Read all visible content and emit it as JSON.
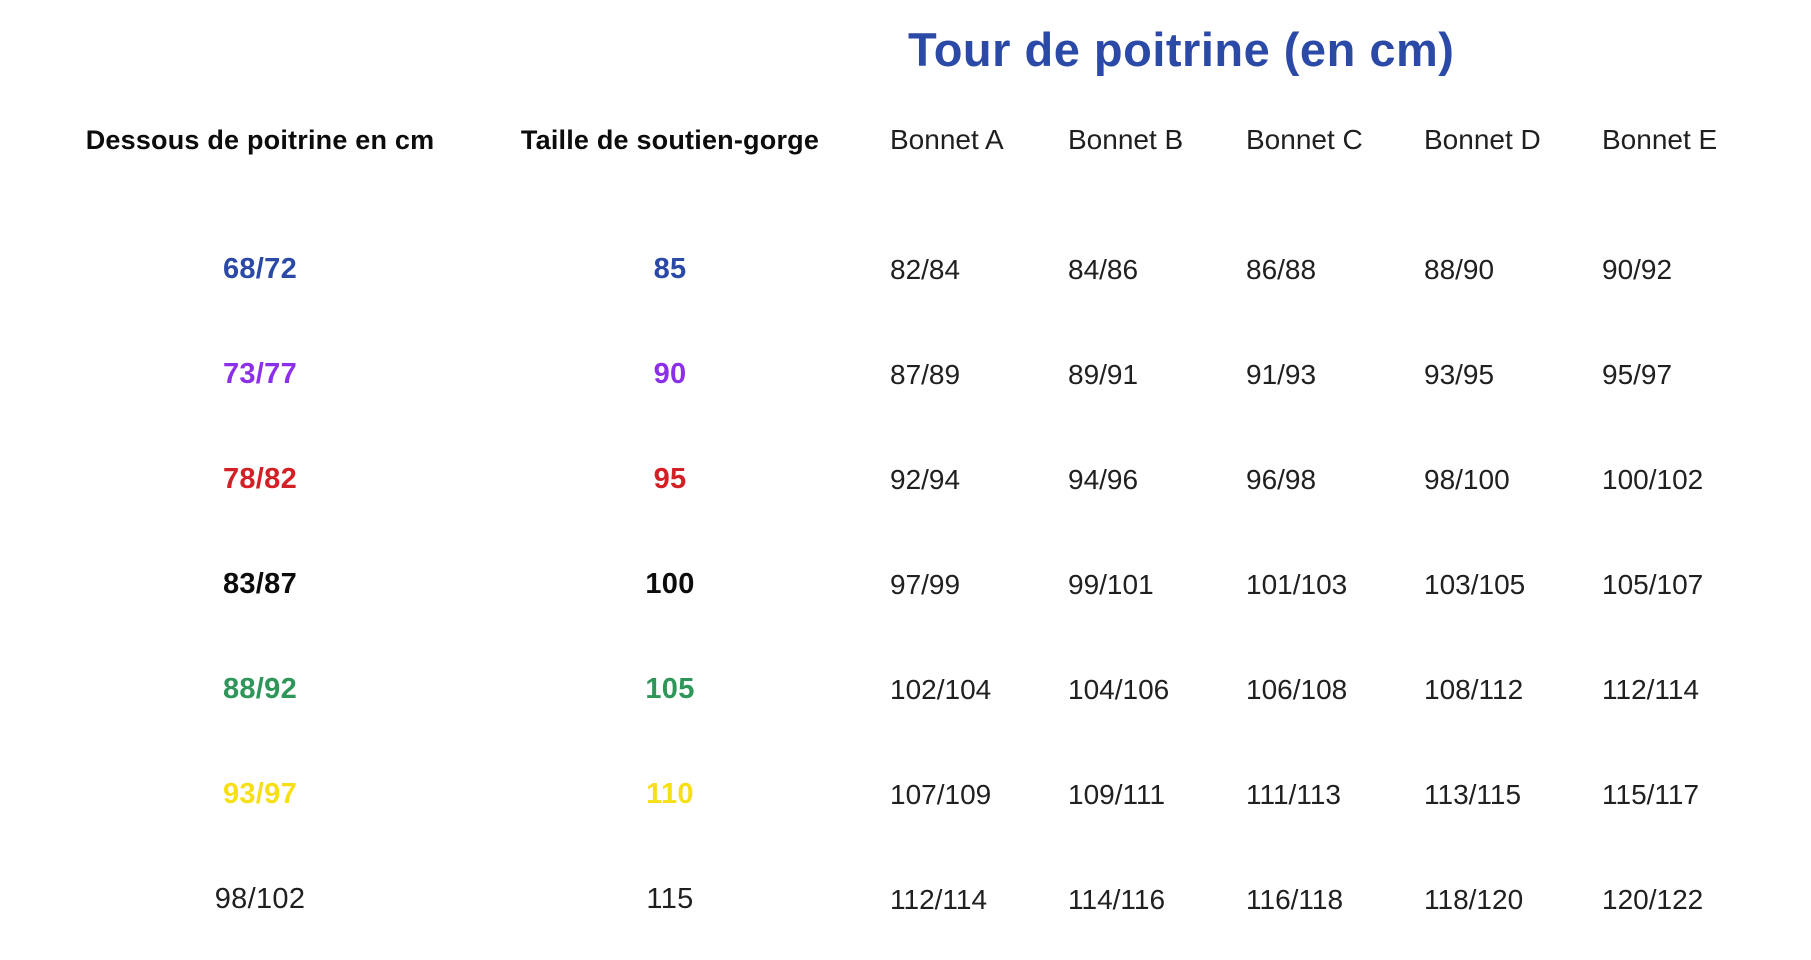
{
  "title": "Tour de poitrine (en cm)",
  "colors": {
    "title_blue": "#2b49a7",
    "row_blue": "#2b49a7",
    "row_purple": "#8b2fe8",
    "row_red": "#d31f26",
    "row_black": "#0c0c0c",
    "row_green": "#2d9658",
    "row_yellow": "#f7df17",
    "row_plain": "#1f1f1f",
    "cup_text": "#202020"
  },
  "table": {
    "headers": [
      {
        "label": "Dessous de poitrine en cm"
      },
      {
        "label": "Taille de soutien-gorge"
      },
      {
        "label": "Bonnet A"
      },
      {
        "label": "Bonnet B"
      },
      {
        "label": "Bonnet C"
      },
      {
        "label": "Bonnet D"
      },
      {
        "label": "Bonnet E"
      }
    ],
    "rows": [
      {
        "underbust": "68/72",
        "band": "85",
        "color": "#2b49a7",
        "bold": true,
        "cups": [
          "82/84",
          "84/86",
          "86/88",
          "88/90",
          "90/92"
        ]
      },
      {
        "underbust": "73/77",
        "band": "90",
        "color": "#8b2fe8",
        "bold": true,
        "cups": [
          "87/89",
          "89/91",
          "91/93",
          "93/95",
          "95/97"
        ]
      },
      {
        "underbust": "78/82",
        "band": "95",
        "color": "#d31f26",
        "bold": true,
        "cups": [
          "92/94",
          "94/96",
          "96/98",
          "98/100",
          "100/102"
        ]
      },
      {
        "underbust": "83/87",
        "band": "100",
        "color": "#0c0c0c",
        "bold": true,
        "cups": [
          "97/99",
          "99/101",
          "101/103",
          "103/105",
          "105/107"
        ]
      },
      {
        "underbust": "88/92",
        "band": "105",
        "color": "#2d9658",
        "bold": true,
        "cups": [
          "102/104",
          "104/106",
          "106/108",
          "108/112",
          "112/114"
        ]
      },
      {
        "underbust": "93/97",
        "band": "110",
        "color": "#f7df17",
        "bold": true,
        "cups": [
          "107/109",
          "109/111",
          "111/113",
          "113/115",
          "115/117"
        ]
      },
      {
        "underbust": "98/102",
        "band": "115",
        "color": "#1f1f1f",
        "bold": false,
        "cups": [
          "112/114",
          "114/116",
          "116/118",
          "118/120",
          "120/122"
        ]
      }
    ]
  }
}
